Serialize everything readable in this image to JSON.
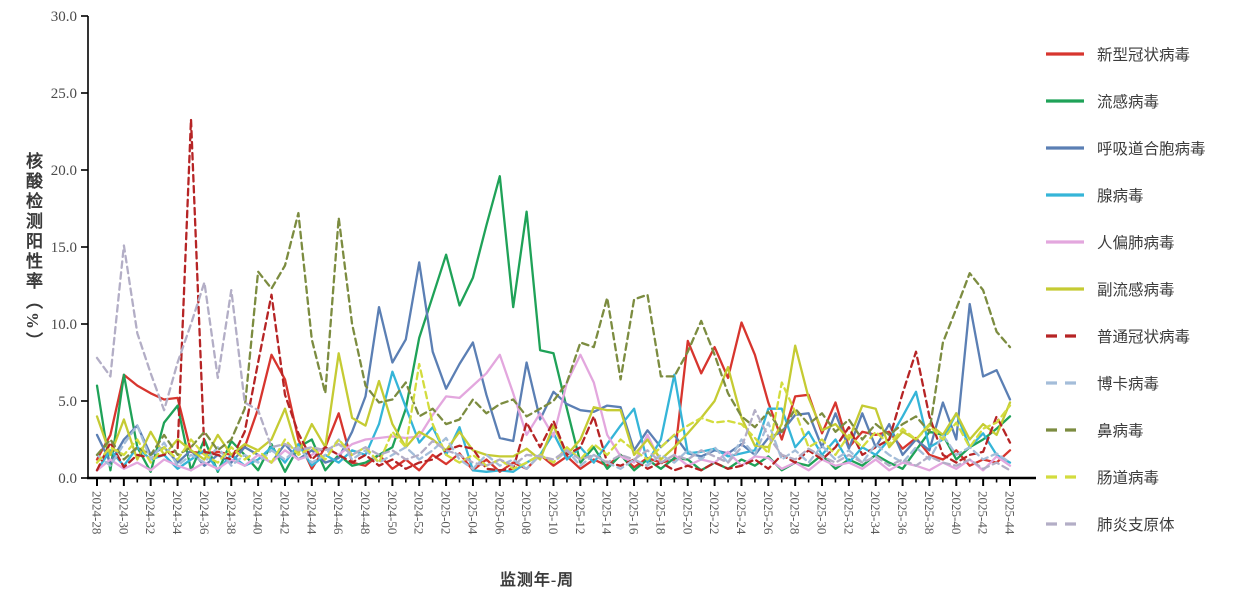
{
  "figure": {
    "ylabel": "核酸检测阳性率（%）",
    "xlabel": "监测年-周",
    "yticks": [
      "0.0",
      "5.0",
      "10.0",
      "15.0",
      "20.0",
      "25.0",
      "30.0"
    ],
    "background": "#ffffff",
    "axis_color": "#000000"
  },
  "chart_data": {
    "type": "line",
    "title": "",
    "xlabel": "监测年-周",
    "ylabel": "核酸检测阳性率（%）",
    "ylim": [
      0,
      30
    ],
    "ytick_values": [
      0,
      5,
      10,
      15,
      20,
      25,
      30
    ],
    "x_label_every": 2,
    "grid": false,
    "legend_position": "right",
    "x": [
      "2024-28",
      "2024-29",
      "2024-30",
      "2024-31",
      "2024-32",
      "2024-33",
      "2024-34",
      "2024-35",
      "2024-36",
      "2024-37",
      "2024-38",
      "2024-39",
      "2024-40",
      "2024-41",
      "2024-42",
      "2024-43",
      "2024-44",
      "2024-45",
      "2024-46",
      "2024-47",
      "2024-48",
      "2024-49",
      "2024-50",
      "2024-51",
      "2024-52",
      "2025-01",
      "2025-02",
      "2025-03",
      "2025-04",
      "2025-05",
      "2025-06",
      "2025-07",
      "2025-08",
      "2025-09",
      "2025-10",
      "2025-11",
      "2025-12",
      "2025-13",
      "2025-14",
      "2025-15",
      "2025-16",
      "2025-17",
      "2025-18",
      "2025-19",
      "2025-20",
      "2025-21",
      "2025-22",
      "2025-23",
      "2025-24",
      "2025-25",
      "2025-26",
      "2025-27",
      "2025-28",
      "2025-29",
      "2025-30",
      "2025-31",
      "2025-32",
      "2025-33",
      "2025-34",
      "2025-35",
      "2025-36",
      "2025-37",
      "2025-38",
      "2025-39",
      "2025-40",
      "2025-41",
      "2025-42",
      "2025-43",
      "2025-44"
    ],
    "series": [
      {
        "name": "新型冠状病毒",
        "color": "#d7352e",
        "dashed": false,
        "values": [
          1.2,
          2.8,
          6.7,
          6.0,
          5.5,
          5.1,
          5.2,
          1.7,
          1.6,
          1.7,
          1.5,
          2.0,
          4.5,
          8.0,
          6.4,
          2.5,
          0.6,
          2.0,
          4.2,
          1.0,
          0.8,
          1.5,
          0.6,
          1.2,
          0.5,
          1.5,
          0.9,
          1.6,
          0.5,
          1.2,
          0.4,
          1.0,
          0.6,
          1.5,
          0.8,
          1.4,
          0.6,
          1.2,
          0.8,
          1.5,
          0.7,
          1.3,
          1.0,
          1.2,
          8.9,
          6.8,
          8.5,
          6.5,
          10.1,
          8.0,
          4.9,
          2.5,
          5.3,
          5.4,
          2.9,
          4.9,
          2.0,
          3.0,
          2.8,
          3.0,
          1.9,
          2.6,
          1.5,
          1.2,
          1.8,
          0.8,
          1.2,
          1.0,
          1.8
        ]
      },
      {
        "name": "流感病毒",
        "color": "#1fa258",
        "dashed": false,
        "values": [
          6.0,
          0.5,
          6.7,
          2.0,
          0.4,
          3.6,
          4.7,
          0.5,
          2.5,
          0.4,
          2.4,
          1.5,
          0.5,
          2.2,
          0.4,
          2.0,
          2.5,
          0.5,
          1.5,
          0.8,
          1.0,
          1.5,
          2.0,
          4.5,
          9.1,
          11.8,
          14.5,
          11.2,
          13.0,
          16.4,
          19.6,
          11.1,
          17.3,
          8.3,
          8.1,
          4.5,
          1.0,
          2.0,
          0.6,
          1.5,
          0.5,
          1.2,
          0.6,
          1.3,
          1.2,
          0.5,
          1.0,
          0.6,
          1.2,
          0.8,
          1.4,
          0.5,
          1.0,
          0.8,
          1.5,
          0.6,
          1.2,
          0.8,
          1.5,
          1.0,
          0.6,
          1.8,
          3.0,
          2.8,
          1.2,
          2.0,
          2.5,
          3.2,
          4.0
        ]
      },
      {
        "name": "呼吸道合胞病毒",
        "color": "#5b7fb4",
        "dashed": false,
        "values": [
          2.8,
          1.0,
          2.5,
          3.4,
          1.5,
          2.0,
          1.0,
          1.8,
          0.8,
          1.5,
          1.0,
          2.0,
          1.5,
          1.0,
          2.2,
          1.2,
          1.8,
          1.0,
          1.3,
          3.0,
          5.3,
          11.1,
          7.5,
          9.0,
          14.0,
          8.2,
          5.8,
          7.4,
          8.8,
          5.4,
          2.6,
          2.4,
          7.5,
          3.8,
          5.6,
          4.8,
          4.4,
          4.3,
          4.7,
          4.6,
          1.8,
          3.1,
          2.0,
          2.8,
          1.6,
          1.4,
          1.8,
          1.6,
          2.2,
          1.5,
          2.6,
          3.0,
          4.1,
          4.2,
          2.0,
          4.2,
          1.9,
          4.2,
          2.0,
          3.5,
          1.5,
          2.5,
          1.8,
          4.9,
          2.5,
          11.3,
          6.6,
          7.0,
          5.1
        ]
      },
      {
        "name": "腺病毒",
        "color": "#35b5d8",
        "dashed": false,
        "values": [
          0.5,
          1.8,
          0.8,
          2.0,
          1.2,
          1.5,
          0.6,
          1.2,
          1.8,
          0.5,
          1.5,
          0.8,
          1.2,
          2.0,
          1.0,
          2.2,
          0.8,
          1.5,
          1.0,
          1.8,
          1.5,
          3.5,
          6.9,
          4.6,
          2.3,
          3.3,
          1.5,
          3.3,
          0.5,
          0.4,
          0.5,
          0.4,
          1.0,
          1.5,
          2.9,
          1.2,
          2.0,
          1.0,
          2.2,
          3.4,
          4.5,
          1.0,
          2.5,
          6.7,
          1.6,
          1.7,
          1.9,
          1.4,
          1.6,
          1.8,
          4.5,
          4.5,
          2.0,
          3.0,
          1.5,
          2.5,
          1.0,
          2.0,
          1.5,
          2.5,
          4.0,
          5.6,
          2.0,
          2.5,
          4.2,
          2.0,
          2.9,
          1.5,
          1.0
        ]
      },
      {
        "name": "人偏肺病毒",
        "color": "#e3a7de",
        "dashed": false,
        "values": [
          0.5,
          1.2,
          0.6,
          1.0,
          0.5,
          1.2,
          0.8,
          0.5,
          1.0,
          0.6,
          1.2,
          0.8,
          1.5,
          1.0,
          1.8,
          1.2,
          1.5,
          2.0,
          1.5,
          2.2,
          2.5,
          2.6,
          2.7,
          2.6,
          2.7,
          4.1,
          5.3,
          5.2,
          6.0,
          6.8,
          8.0,
          5.5,
          2.8,
          4.2,
          2.7,
          6.2,
          8.0,
          6.2,
          2.8,
          1.4,
          1.0,
          2.8,
          1.0,
          1.5,
          0.8,
          1.2,
          1.0,
          1.7,
          0.8,
          1.4,
          1.3,
          0.6,
          1.0,
          0.5,
          1.2,
          0.8,
          1.0,
          0.6,
          1.2,
          0.5,
          1.0,
          0.8,
          0.5,
          1.0,
          0.6,
          1.2,
          0.5,
          1.4,
          0.8
        ]
      },
      {
        "name": "副流感病毒",
        "color": "#c5cb33",
        "dashed": false,
        "values": [
          4.0,
          1.5,
          3.8,
          1.2,
          3.0,
          1.5,
          2.5,
          1.8,
          1.2,
          2.8,
          1.5,
          2.2,
          1.8,
          2.5,
          4.5,
          1.6,
          3.5,
          2.0,
          8.1,
          3.9,
          3.4,
          6.3,
          3.5,
          2.0,
          3.0,
          2.5,
          1.8,
          3.0,
          1.8,
          1.5,
          1.4,
          1.4,
          1.9,
          1.2,
          3.4,
          1.5,
          2.5,
          4.6,
          4.4,
          4.4,
          1.5,
          2.5,
          1.2,
          2.0,
          2.9,
          3.9,
          5.0,
          7.2,
          3.9,
          2.1,
          2.0,
          3.5,
          8.6,
          5.2,
          3.1,
          3.5,
          2.5,
          4.7,
          4.5,
          2.0,
          3.0,
          2.5,
          3.5,
          2.8,
          4.2,
          2.5,
          3.5,
          2.8,
          4.9
        ]
      },
      {
        "name": "普通冠状病毒",
        "color": "#b62425",
        "dashed": true,
        "values": [
          0.5,
          2.3,
          0.7,
          1.5,
          1.3,
          1.5,
          1.8,
          23.3,
          1.7,
          1.5,
          1.2,
          3.0,
          7.5,
          11.9,
          5.4,
          2.9,
          1.2,
          2.0,
          1.5,
          1.0,
          1.5,
          0.8,
          1.2,
          0.6,
          1.0,
          1.2,
          1.8,
          2.1,
          1.9,
          0.6,
          0.5,
          0.6,
          3.6,
          2.0,
          3.7,
          1.5,
          2.0,
          4.0,
          1.0,
          0.8,
          1.2,
          0.6,
          1.0,
          0.5,
          0.8,
          0.5,
          1.0,
          0.6,
          0.8,
          1.2,
          0.6,
          1.5,
          1.0,
          1.8,
          1.2,
          2.0,
          3.3,
          1.5,
          2.0,
          2.5,
          5.5,
          8.2,
          4.0,
          1.5,
          1.0,
          1.5,
          1.7,
          4.0,
          2.3
        ]
      },
      {
        "name": "博卡病毒",
        "color": "#a4bdd9",
        "dashed": true,
        "values": [
          1.5,
          0.8,
          2.2,
          3.4,
          1.2,
          2.3,
          0.8,
          1.5,
          1.0,
          2.0,
          0.8,
          1.5,
          1.0,
          1.8,
          1.2,
          2.0,
          1.0,
          1.5,
          2.5,
          1.2,
          1.8,
          1.0,
          1.5,
          2.0,
          1.2,
          1.8,
          2.6,
          1.2,
          0.6,
          1.5,
          0.8,
          1.2,
          0.6,
          1.5,
          1.0,
          1.8,
          0.8,
          1.5,
          1.0,
          0.6,
          1.2,
          0.8,
          1.5,
          1.0,
          1.8,
          1.2,
          2.0,
          1.0,
          2.5,
          1.5,
          3.6,
          1.2,
          1.8,
          1.0,
          2.1,
          1.2,
          1.8,
          1.0,
          2.2,
          1.5,
          1.0,
          2.0,
          1.2,
          2.8,
          1.5,
          2.0,
          1.2,
          1.6,
          1.0
        ]
      },
      {
        "name": "鼻病毒",
        "color": "#7c8c40",
        "dashed": true,
        "values": [
          1.5,
          2.5,
          1.2,
          2.0,
          1.5,
          2.8,
          1.5,
          2.0,
          3.0,
          1.8,
          2.5,
          4.5,
          13.4,
          12.3,
          13.8,
          17.2,
          9.0,
          5.5,
          16.9,
          10.0,
          6.0,
          4.9,
          5.1,
          6.2,
          4.0,
          4.5,
          3.5,
          3.8,
          5.1,
          4.2,
          4.8,
          5.1,
          4.0,
          4.5,
          5.0,
          6.2,
          8.8,
          8.5,
          11.7,
          6.4,
          11.6,
          11.9,
          6.6,
          6.6,
          8.2,
          10.2,
          8.0,
          5.5,
          4.0,
          3.3,
          4.3,
          3.0,
          4.5,
          3.5,
          4.2,
          3.0,
          3.8,
          2.5,
          3.5,
          2.8,
          3.5,
          4.0,
          3.0,
          8.8,
          11.0,
          13.3,
          12.2,
          9.5,
          8.5
        ]
      },
      {
        "name": "肠道病毒",
        "color": "#d3dc3e",
        "dashed": true,
        "values": [
          1.0,
          2.0,
          1.5,
          2.5,
          1.0,
          2.0,
          1.2,
          2.5,
          1.5,
          1.0,
          2.0,
          1.2,
          1.8,
          1.0,
          2.5,
          1.5,
          2.0,
          1.2,
          2.5,
          1.5,
          2.0,
          1.0,
          3.0,
          2.0,
          7.4,
          3.5,
          1.5,
          1.0,
          1.5,
          0.8,
          1.2,
          0.6,
          1.0,
          1.5,
          1.0,
          2.0,
          1.2,
          2.2,
          1.5,
          2.5,
          1.8,
          1.2,
          2.0,
          2.8,
          3.4,
          3.9,
          3.6,
          3.7,
          3.5,
          2.6,
          1.6,
          6.2,
          4.3,
          2.0,
          2.5,
          1.5,
          2.8,
          2.0,
          3.0,
          2.2,
          3.2,
          2.5,
          3.4,
          2.5,
          3.6,
          2.0,
          3.2,
          3.6,
          4.7
        ]
      },
      {
        "name": "肺炎支原体",
        "color": "#b3aec6",
        "dashed": true,
        "values": [
          7.8,
          6.6,
          15.1,
          9.4,
          6.8,
          4.4,
          7.5,
          10.0,
          12.7,
          6.5,
          12.2,
          4.9,
          4.4,
          2.0,
          2.2,
          1.8,
          2.0,
          1.8,
          2.2,
          1.5,
          2.0,
          1.5,
          1.8,
          1.2,
          1.5,
          2.4,
          1.8,
          1.5,
          1.0,
          0.8,
          1.2,
          0.8,
          1.5,
          1.4,
          1.2,
          1.8,
          1.2,
          1.5,
          1.0,
          1.5,
          1.2,
          1.8,
          1.0,
          1.5,
          1.2,
          1.8,
          1.4,
          1.0,
          2.0,
          4.4,
          2.7,
          1.5,
          1.2,
          1.9,
          1.4,
          1.0,
          1.5,
          1.0,
          1.4,
          0.8,
          1.2,
          0.8,
          1.4,
          1.0,
          0.8,
          1.2,
          0.6,
          1.0,
          0.5
        ]
      }
    ]
  }
}
